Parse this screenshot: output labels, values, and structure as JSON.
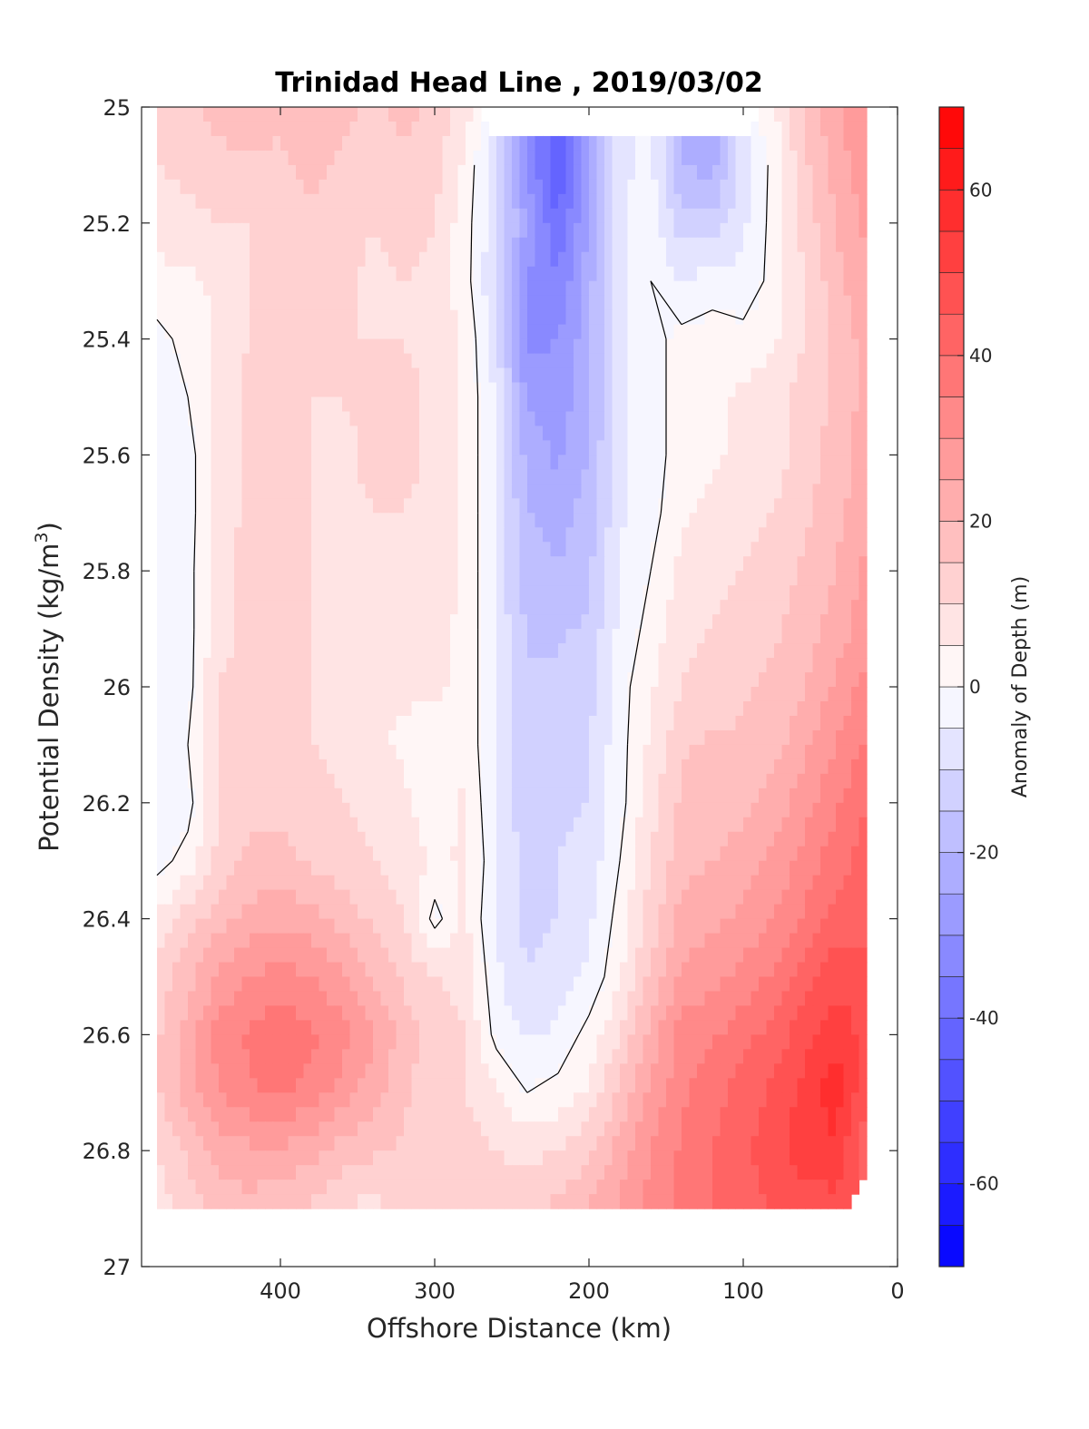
{
  "chart_data": {
    "type": "heatmap",
    "subtype": "filled-contour section",
    "title": "Trinidad Head Line , 2019/03/02",
    "xlabel": "Offshore Distance (km)",
    "ylabel_text": "Potential Density (kg/m",
    "ylabel_superscript": "3",
    "ylabel_close": ")",
    "xlim": [
      490,
      0
    ],
    "x_reversed": true,
    "ylim": [
      25,
      27
    ],
    "y_reversed": true,
    "x_ticks": [
      400,
      300,
      200,
      100,
      0
    ],
    "y_ticks": [
      25,
      25.2,
      25.4,
      25.6,
      25.8,
      26,
      26.2,
      26.4,
      26.6,
      26.8,
      27
    ],
    "y_tick_labels": [
      "25",
      "25.2",
      "25.4",
      "25.6",
      "25.8",
      "26",
      "26.2",
      "26.4",
      "26.6",
      "26.8",
      "27"
    ],
    "colorbar": {
      "label": "Anomaly of Depth (m)",
      "range": [
        -70,
        70
      ],
      "step": 5,
      "ticks": [
        60,
        40,
        20,
        0,
        -20,
        -40,
        -60
      ],
      "colormap": "blue-white-red diverging",
      "color_min": "#0000ff",
      "color_mid": "#ffffff",
      "color_max": "#ff0000"
    },
    "grid": false,
    "contour_line_level": 0,
    "contour_line_color": "#000000",
    "grid_x": [
      480,
      460,
      440,
      420,
      400,
      380,
      360,
      340,
      320,
      300,
      280,
      260,
      240,
      220,
      200,
      180,
      160,
      140,
      120,
      100,
      80,
      60,
      40,
      20
    ],
    "grid_y": [
      25.0,
      25.1,
      25.2,
      25.3,
      25.4,
      25.5,
      25.6,
      25.7,
      25.8,
      25.9,
      26.0,
      26.1,
      26.2,
      26.3,
      26.4,
      26.5,
      26.6,
      26.7,
      26.8,
      26.9
    ],
    "anomaly_rows": [
      [
        12,
        14,
        16,
        18,
        16,
        18,
        16,
        14,
        16,
        14,
        6,
        null,
        null,
        null,
        null,
        null,
        null,
        null,
        null,
        null,
        4,
        16,
        24,
        30
      ],
      [
        10,
        12,
        14,
        14,
        14,
        16,
        14,
        12,
        14,
        12,
        4,
        -10,
        -30,
        -45,
        -25,
        -6,
        -4,
        -20,
        -22,
        -8,
        2,
        14,
        22,
        28
      ],
      [
        6,
        8,
        10,
        10,
        12,
        14,
        14,
        10,
        12,
        10,
        2,
        -8,
        -26,
        -40,
        -24,
        -6,
        -2,
        -12,
        -14,
        -6,
        2,
        12,
        20,
        26
      ],
      [
        4,
        4,
        6,
        10,
        10,
        12,
        12,
        8,
        10,
        8,
        2,
        -10,
        -30,
        -34,
        -22,
        -6,
        0,
        -6,
        -2,
        -4,
        2,
        10,
        18,
        24
      ],
      [
        -2,
        2,
        6,
        10,
        12,
        12,
        10,
        10,
        10,
        8,
        4,
        -8,
        -32,
        -30,
        -22,
        -6,
        -2,
        2,
        2,
        2,
        4,
        10,
        16,
        22
      ],
      [
        -4,
        0,
        6,
        12,
        12,
        10,
        10,
        12,
        12,
        8,
        4,
        -6,
        -26,
        -28,
        -22,
        -6,
        -2,
        2,
        4,
        6,
        8,
        12,
        16,
        22
      ],
      [
        -4,
        -2,
        6,
        12,
        12,
        10,
        8,
        12,
        12,
        8,
        4,
        -6,
        -22,
        -26,
        -20,
        -6,
        -2,
        2,
        4,
        6,
        8,
        12,
        18,
        22
      ],
      [
        -4,
        -2,
        6,
        12,
        12,
        10,
        8,
        10,
        10,
        8,
        4,
        -6,
        -20,
        -22,
        -18,
        -6,
        -2,
        4,
        6,
        8,
        10,
        14,
        18,
        24
      ],
      [
        -4,
        -2,
        8,
        12,
        12,
        10,
        8,
        8,
        10,
        8,
        4,
        -6,
        -18,
        -20,
        -16,
        -4,
        0,
        6,
        8,
        10,
        12,
        16,
        20,
        26
      ],
      [
        -4,
        -2,
        8,
        12,
        12,
        10,
        8,
        8,
        8,
        6,
        4,
        -6,
        -16,
        -16,
        -14,
        -4,
        2,
        8,
        10,
        12,
        14,
        18,
        22,
        28
      ],
      [
        -2,
        -2,
        10,
        12,
        12,
        10,
        8,
        6,
        6,
        6,
        4,
        -6,
        -14,
        -14,
        -12,
        -2,
        4,
        10,
        12,
        14,
        16,
        20,
        26,
        32
      ],
      [
        -2,
        0,
        10,
        12,
        12,
        10,
        8,
        6,
        4,
        2,
        4,
        -6,
        -14,
        -12,
        -10,
        -2,
        6,
        14,
        16,
        16,
        18,
        24,
        30,
        36
      ],
      [
        -4,
        -2,
        10,
        14,
        14,
        12,
        10,
        8,
        6,
        2,
        6,
        -6,
        -14,
        -12,
        -10,
        -2,
        8,
        16,
        18,
        18,
        22,
        28,
        34,
        40
      ],
      [
        -2,
        2,
        12,
        16,
        16,
        14,
        12,
        10,
        8,
        4,
        6,
        -4,
        -12,
        -10,
        -8,
        0,
        10,
        18,
        20,
        22,
        26,
        32,
        38,
        42
      ],
      [
        6,
        12,
        18,
        22,
        24,
        22,
        18,
        14,
        10,
        -2,
        6,
        -6,
        -12,
        -10,
        -6,
        2,
        12,
        22,
        24,
        26,
        30,
        36,
        42,
        44
      ],
      [
        12,
        18,
        26,
        30,
        32,
        30,
        26,
        20,
        14,
        10,
        8,
        -4,
        -10,
        -8,
        -4,
        4,
        16,
        26,
        28,
        32,
        36,
        42,
        48,
        46
      ],
      [
        14,
        22,
        32,
        36,
        40,
        36,
        32,
        26,
        18,
        12,
        10,
        -2,
        -6,
        -4,
        2,
        10,
        22,
        32,
        34,
        38,
        42,
        48,
        54,
        48
      ],
      [
        14,
        22,
        30,
        34,
        36,
        32,
        28,
        22,
        16,
        12,
        10,
        6,
        0,
        2,
        6,
        16,
        26,
        34,
        38,
        42,
        46,
        52,
        58,
        46
      ],
      [
        10,
        16,
        22,
        24,
        24,
        22,
        18,
        16,
        14,
        12,
        12,
        10,
        8,
        10,
        14,
        22,
        30,
        36,
        40,
        44,
        48,
        52,
        54,
        40
      ],
      [
        8,
        12,
        16,
        18,
        16,
        14,
        10,
        8,
        12,
        14,
        14,
        14,
        14,
        16,
        20,
        26,
        32,
        36,
        40,
        42,
        46,
        48,
        48,
        null
      ]
    ]
  }
}
